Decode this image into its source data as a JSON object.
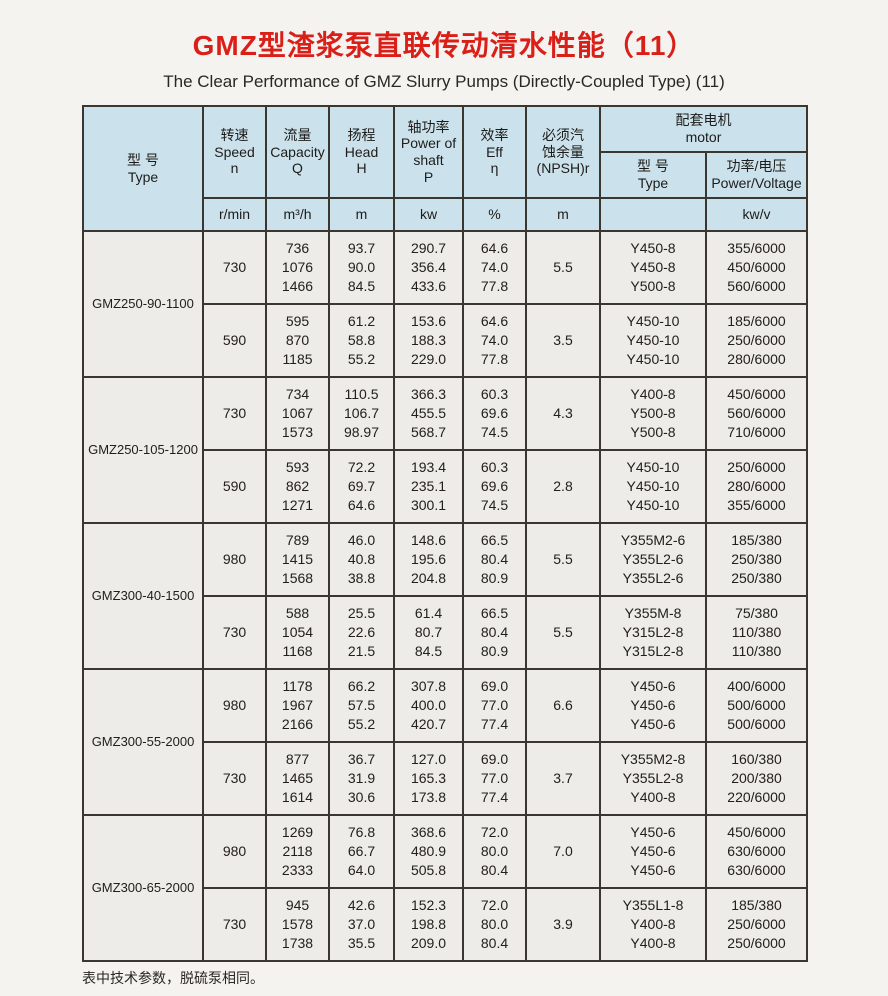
{
  "page": {
    "title_cn": "GMZ型渣浆泵直联传动清水性能（11）",
    "title_en": "The Clear Performance of GMZ Slurry Pumps (Directly-Coupled Type) (11)",
    "footnote": "表中技术参数，脱硫泵相同。",
    "title_color": "#da1f18"
  },
  "table": {
    "header": {
      "type": {
        "cn": "型  号",
        "en": "Type"
      },
      "speed": {
        "cn": "转速",
        "en": "Speed",
        "sym": "n",
        "unit": "r/min"
      },
      "capacity": {
        "cn": "流量",
        "en": "Capacity",
        "sym": "Q",
        "unit": "m³/h"
      },
      "head": {
        "cn": "扬程",
        "en": "Head",
        "sym": "H",
        "unit": "m"
      },
      "power": {
        "cn": "轴功率",
        "en": "Power of\nshaft",
        "sym": "P",
        "unit": "kw"
      },
      "eff": {
        "cn": "效率",
        "en": "Eff",
        "sym": "η",
        "unit": "%"
      },
      "npsh": {
        "cn": "必须汽\n蚀余量",
        "en": "(NPSH)r",
        "unit": "m"
      },
      "motor": {
        "cn": "配套电机",
        "en": "motor"
      },
      "motor_type": {
        "cn": "型  号",
        "en": "Type",
        "unit": ""
      },
      "motor_pv": {
        "cn": "功率/电压",
        "en": "Power/Voltage",
        "unit": "kw/v"
      }
    },
    "groups": [
      {
        "model": "GMZ250-90-1100",
        "rows": [
          {
            "speed": "730",
            "capacity": [
              "736",
              "1076",
              "1466"
            ],
            "head": [
              "93.7",
              "90.0",
              "84.5"
            ],
            "power": [
              "290.7",
              "356.4",
              "433.6"
            ],
            "eff": [
              "64.6",
              "74.0",
              "77.8"
            ],
            "npsh": "5.5",
            "motor_type": [
              "Y450-8",
              "Y450-8",
              "Y500-8"
            ],
            "motor_pv": [
              "355/6000",
              "450/6000",
              "560/6000"
            ]
          },
          {
            "speed": "590",
            "capacity": [
              "595",
              "870",
              "1185"
            ],
            "head": [
              "61.2",
              "58.8",
              "55.2"
            ],
            "power": [
              "153.6",
              "188.3",
              "229.0"
            ],
            "eff": [
              "64.6",
              "74.0",
              "77.8"
            ],
            "npsh": "3.5",
            "motor_type": [
              "Y450-10",
              "Y450-10",
              "Y450-10"
            ],
            "motor_pv": [
              "185/6000",
              "250/6000",
              "280/6000"
            ]
          }
        ]
      },
      {
        "model": "GMZ250-105-1200",
        "rows": [
          {
            "speed": "730",
            "capacity": [
              "734",
              "1067",
              "1573"
            ],
            "head": [
              "110.5",
              "106.7",
              "98.97"
            ],
            "power": [
              "366.3",
              "455.5",
              "568.7"
            ],
            "eff": [
              "60.3",
              "69.6",
              "74.5"
            ],
            "npsh": "4.3",
            "motor_type": [
              "Y400-8",
              "Y500-8",
              "Y500-8"
            ],
            "motor_pv": [
              "450/6000",
              "560/6000",
              "710/6000"
            ]
          },
          {
            "speed": "590",
            "capacity": [
              "593",
              "862",
              "1271"
            ],
            "head": [
              "72.2",
              "69.7",
              "64.6"
            ],
            "power": [
              "193.4",
              "235.1",
              "300.1"
            ],
            "eff": [
              "60.3",
              "69.6",
              "74.5"
            ],
            "npsh": "2.8",
            "motor_type": [
              "Y450-10",
              "Y450-10",
              "Y450-10"
            ],
            "motor_pv": [
              "250/6000",
              "280/6000",
              "355/6000"
            ]
          }
        ]
      },
      {
        "model": "GMZ300-40-1500",
        "rows": [
          {
            "speed": "980",
            "capacity": [
              "789",
              "1415",
              "1568"
            ],
            "head": [
              "46.0",
              "40.8",
              "38.8"
            ],
            "power": [
              "148.6",
              "195.6",
              "204.8"
            ],
            "eff": [
              "66.5",
              "80.4",
              "80.9"
            ],
            "npsh": "5.5",
            "motor_type": [
              "Y355M2-6",
              "Y355L2-6",
              "Y355L2-6"
            ],
            "motor_pv": [
              "185/380",
              "250/380",
              "250/380"
            ]
          },
          {
            "speed": "730",
            "capacity": [
              "588",
              "1054",
              "1168"
            ],
            "head": [
              "25.5",
              "22.6",
              "21.5"
            ],
            "power": [
              "61.4",
              "80.7",
              "84.5"
            ],
            "eff": [
              "66.5",
              "80.4",
              "80.9"
            ],
            "npsh": "5.5",
            "motor_type": [
              "Y355M-8",
              "Y315L2-8",
              "Y315L2-8"
            ],
            "motor_pv": [
              "75/380",
              "110/380",
              "110/380"
            ]
          }
        ]
      },
      {
        "model": "GMZ300-55-2000",
        "rows": [
          {
            "speed": "980",
            "capacity": [
              "1178",
              "1967",
              "2166"
            ],
            "head": [
              "66.2",
              "57.5",
              "55.2"
            ],
            "power": [
              "307.8",
              "400.0",
              "420.7"
            ],
            "eff": [
              "69.0",
              "77.0",
              "77.4"
            ],
            "npsh": "6.6",
            "motor_type": [
              "Y450-6",
              "Y450-6",
              "Y450-6"
            ],
            "motor_pv": [
              "400/6000",
              "500/6000",
              "500/6000"
            ]
          },
          {
            "speed": "730",
            "capacity": [
              "877",
              "1465",
              "1614"
            ],
            "head": [
              "36.7",
              "31.9",
              "30.6"
            ],
            "power": [
              "127.0",
              "165.3",
              "173.8"
            ],
            "eff": [
              "69.0",
              "77.0",
              "77.4"
            ],
            "npsh": "3.7",
            "motor_type": [
              "Y355M2-8",
              "Y355L2-8",
              "Y400-8"
            ],
            "motor_pv": [
              "160/380",
              "200/380",
              "220/6000"
            ]
          }
        ]
      },
      {
        "model": "GMZ300-65-2000",
        "rows": [
          {
            "speed": "980",
            "capacity": [
              "1269",
              "2118",
              "2333"
            ],
            "head": [
              "76.8",
              "66.7",
              "64.0"
            ],
            "power": [
              "368.6",
              "480.9",
              "505.8"
            ],
            "eff": [
              "72.0",
              "80.0",
              "80.4"
            ],
            "npsh": "7.0",
            "motor_type": [
              "Y450-6",
              "Y450-6",
              "Y450-6"
            ],
            "motor_pv": [
              "450/6000",
              "630/6000",
              "630/6000"
            ]
          },
          {
            "speed": "730",
            "capacity": [
              "945",
              "1578",
              "1738"
            ],
            "head": [
              "42.6",
              "37.0",
              "35.5"
            ],
            "power": [
              "152.3",
              "198.8",
              "209.0"
            ],
            "eff": [
              "72.0",
              "80.0",
              "80.4"
            ],
            "npsh": "3.9",
            "motor_type": [
              "Y355L1-8",
              "Y400-8",
              "Y400-8"
            ],
            "motor_pv": [
              "185/380",
              "250/6000",
              "250/6000"
            ]
          }
        ]
      }
    ]
  }
}
